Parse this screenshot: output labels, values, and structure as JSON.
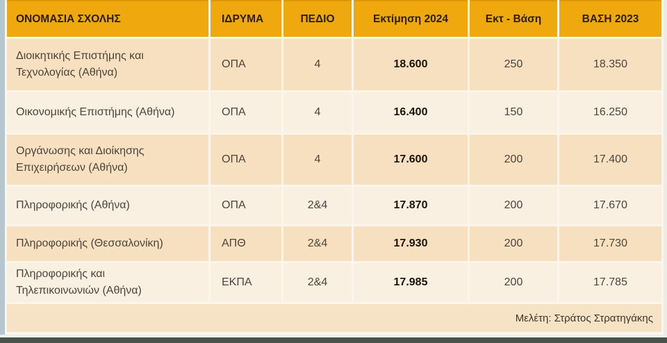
{
  "colors": {
    "header_bg": "#EFA80D",
    "header_top_edge": "#DD9A06",
    "row_dark_bg": "#F7E0BF",
    "row_light_bg": "#FAF0E1",
    "footer_bg": "#F6E2C4",
    "left_strip": "#B7C7CF",
    "bottom_bar": "#49524D",
    "header_text": "#2B1D07",
    "body_text": "#4E443B"
  },
  "table": {
    "columns": [
      "ΟΝΟΜΑΣΙΑ ΣΧΟΛΗΣ",
      "ΙΔΡΥΜΑ",
      "ΠΕΔΙΟ",
      "Εκτίμηση 2024",
      "Εκτ - Βάση",
      "ΒΑΣΗ 2023"
    ],
    "rows": [
      {
        "school": "Διοικητικής Επιστήμης και Τεχνολογίας (Αθήνα)",
        "institution": "ΟΠΑ",
        "field": "4",
        "estimate_2024": "18.600",
        "estimate_minus_base": "250",
        "base_2023": "18.350"
      },
      {
        "school": "Οικονομικής Επιστήμης (Αθήνα)",
        "institution": "ΟΠΑ",
        "field": "4",
        "estimate_2024": "16.400",
        "estimate_minus_base": "150",
        "base_2023": "16.250"
      },
      {
        "school": "Οργάνωσης και Διοίκησης Επιχειρήσεων (Αθήνα)",
        "institution": "ΟΠΑ",
        "field": "4",
        "estimate_2024": "17.600",
        "estimate_minus_base": "200",
        "base_2023": "17.400"
      },
      {
        "school": "Πληροφορικής (Αθήνα)",
        "institution": "ΟΠΑ",
        "field": "2&4",
        "estimate_2024": "17.870",
        "estimate_minus_base": "200",
        "base_2023": "17.670"
      },
      {
        "school": "Πληροφορικής (Θεσσαλονίκη)",
        "institution": "ΑΠΘ",
        "field": "2&4",
        "estimate_2024": "17.930",
        "estimate_minus_base": "200",
        "base_2023": "17.730"
      },
      {
        "school": "Πληροφορικής και Τηλεπικοινωνιών (Αθήνα)",
        "institution": "ΕΚΠΑ",
        "field": "2&4",
        "estimate_2024": "17.985",
        "estimate_minus_base": "200",
        "base_2023": "17.785"
      }
    ],
    "credit": "Μελέτη: Στράτος Στρατηγάκης"
  }
}
